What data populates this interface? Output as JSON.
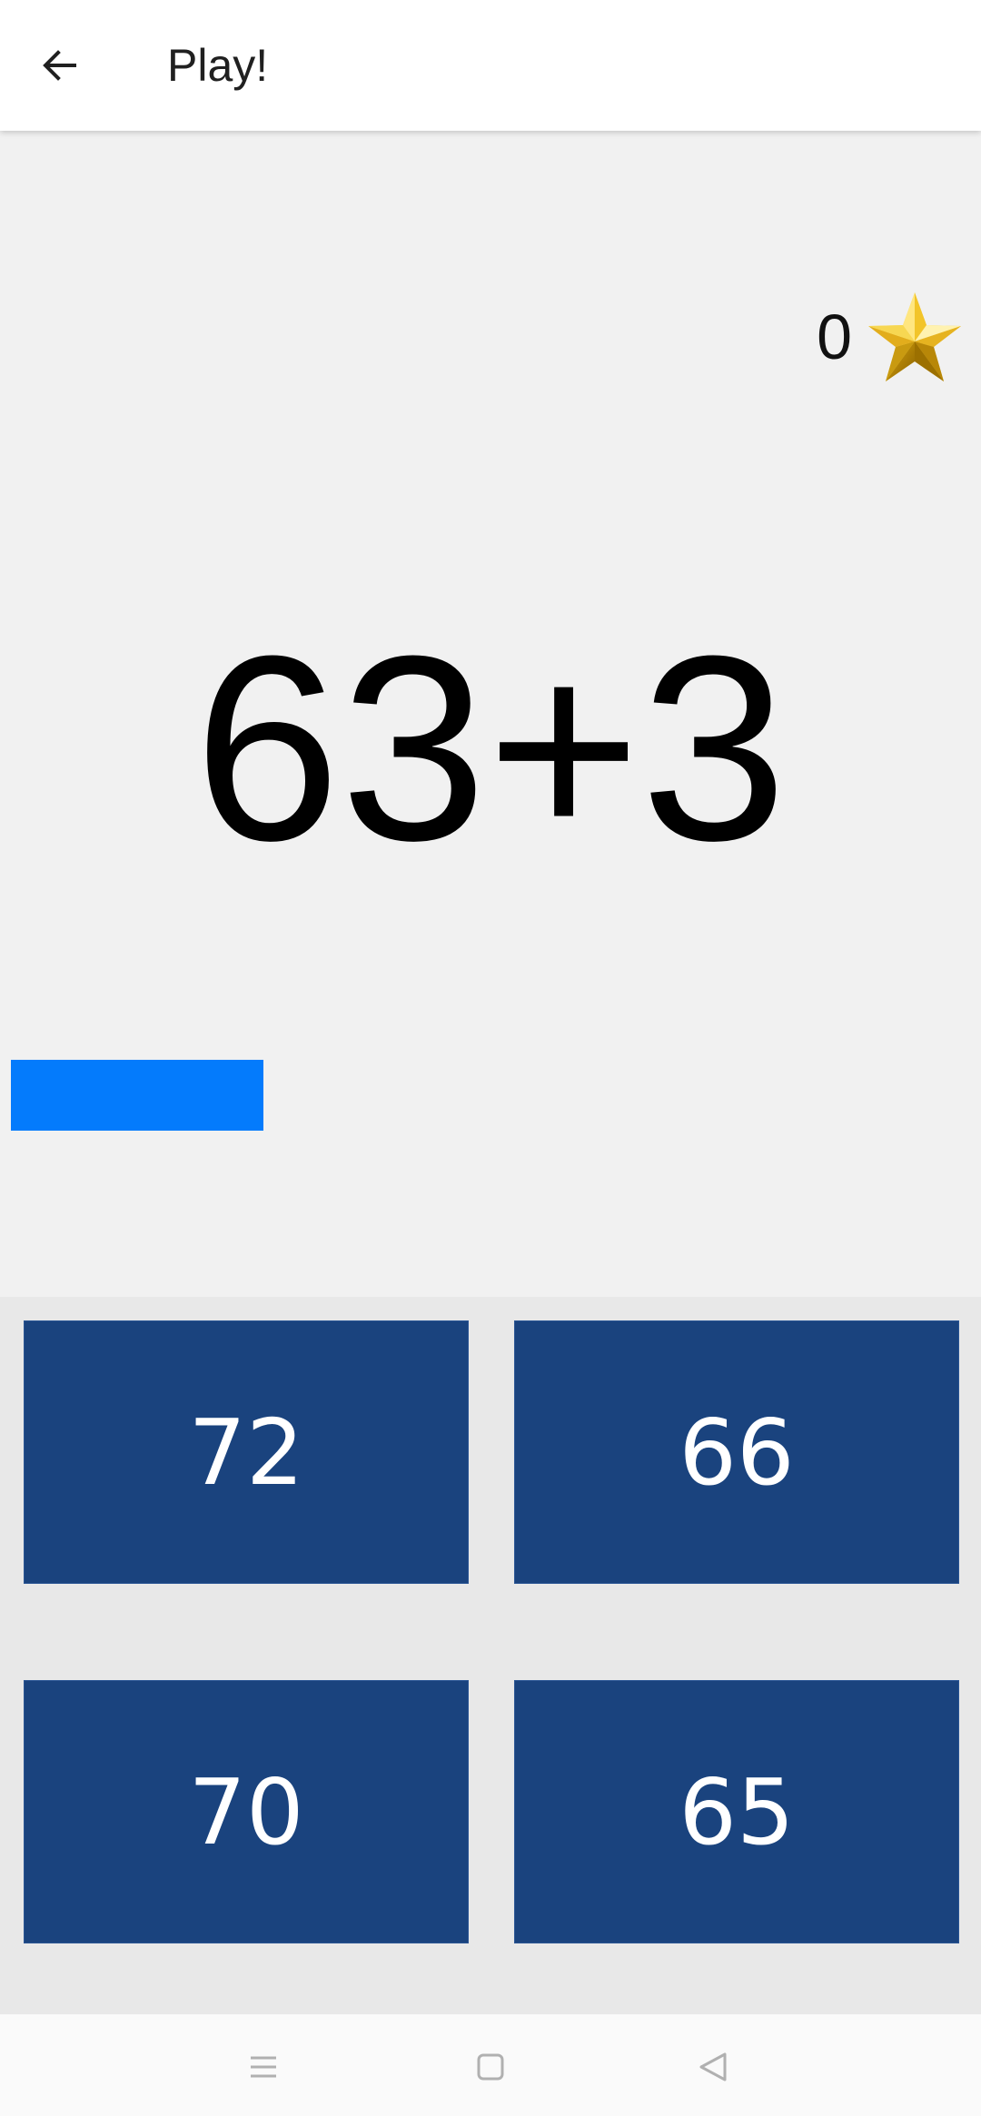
{
  "app_bar": {
    "title": "Play!",
    "back_icon": "arrow-left-icon"
  },
  "game": {
    "score": "0",
    "score_icon": "star-icon",
    "question": "63+3",
    "timer_progress": 0.263,
    "colors": {
      "timer": "#047bfc",
      "answer_button": "#1a437e"
    }
  },
  "answers": [
    {
      "label": "72"
    },
    {
      "label": "66"
    },
    {
      "label": "70"
    },
    {
      "label": "65"
    }
  ],
  "nav_bar": {
    "icons": [
      "menu-icon",
      "home-square-icon",
      "back-triangle-icon"
    ]
  }
}
